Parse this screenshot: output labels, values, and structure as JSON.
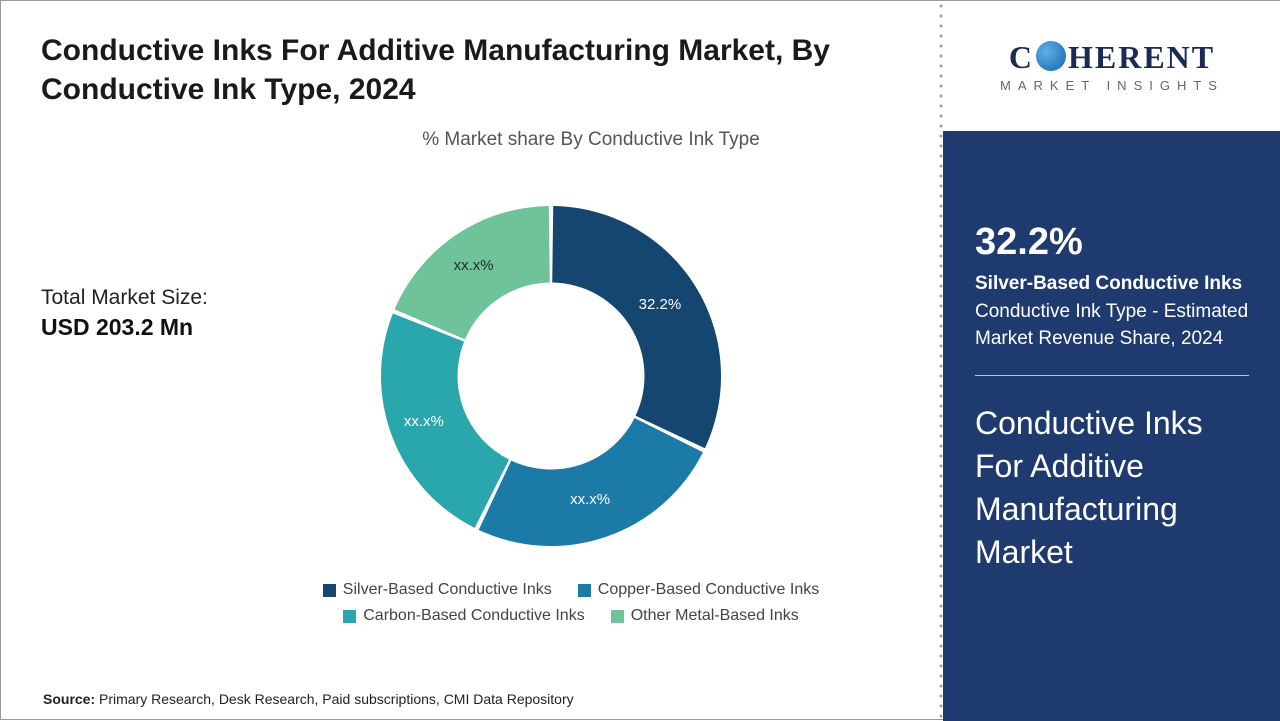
{
  "title": "Conductive Inks For Additive Manufacturing Market, By Conductive Ink Type, 2024",
  "subtitle": "% Market share By Conductive Ink Type",
  "total_label": "Total Market Size:",
  "total_value": "USD 203.2 Mn",
  "source_label": "Source:",
  "source_text": " Primary Research, Desk Research, Paid subscriptions, CMI Data Repository",
  "chart": {
    "type": "donut",
    "inner_radius_pct": 55,
    "background_color": "#ffffff",
    "gap_deg": 1.5,
    "slices": [
      {
        "name": "Silver-Based Conductive Inks",
        "value": 32.2,
        "label": "32.2%",
        "color": "#15466f",
        "label_dark": false
      },
      {
        "name": "Copper-Based Conductive Inks",
        "value": 25.0,
        "label": "xx.x%",
        "color": "#1c7aa6",
        "label_dark": false
      },
      {
        "name": "Carbon-Based Conductive Inks",
        "value": 24.0,
        "label": "xx.x%",
        "color": "#2aa7ad",
        "label_dark": false
      },
      {
        "name": "Other Metal-Based Inks",
        "value": 18.8,
        "label": "xx.x%",
        "color": "#6fc39b",
        "label_dark": true
      }
    ]
  },
  "legend": [
    {
      "label": "Silver-Based Conductive Inks",
      "color": "#15466f"
    },
    {
      "label": "Copper-Based Conductive Inks",
      "color": "#1c7aa6"
    },
    {
      "label": "Carbon-Based Conductive Inks",
      "color": "#2aa7ad"
    },
    {
      "label": "Other Metal-Based Inks",
      "color": "#6fc39b"
    }
  ],
  "logo": {
    "text_left": "C",
    "text_right": "HERENT",
    "sub": "MARKET INSIGHTS"
  },
  "panel": {
    "pct": "32.2%",
    "bold": "Silver-Based Conductive Inks",
    "rest": " Conductive Ink Type - Estimated Market Revenue Share, 2024",
    "title": "Conductive Inks For Additive Manufacturing Market"
  }
}
